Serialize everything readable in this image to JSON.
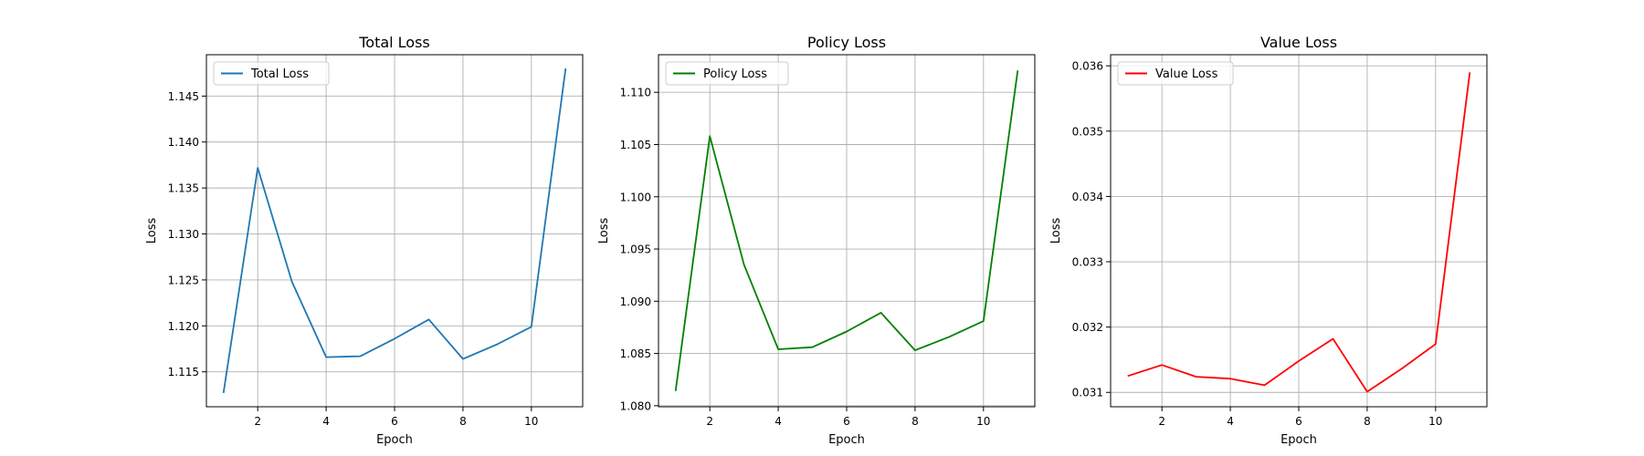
{
  "chart_data": [
    {
      "type": "line",
      "title": "Total Loss",
      "xlabel": "Epoch",
      "ylabel": "Loss",
      "xlim": [
        0.5,
        11.5
      ],
      "ylim": [
        1.1112,
        1.1495
      ],
      "xticks": [
        2,
        4,
        6,
        8,
        10
      ],
      "yticks": [
        1.115,
        1.12,
        1.125,
        1.13,
        1.135,
        1.14,
        1.145
      ],
      "ytick_labels": [
        "1.115",
        "1.120",
        "1.125",
        "1.130",
        "1.135",
        "1.140",
        "1.145"
      ],
      "grid": true,
      "legend_position": "top-left",
      "series": [
        {
          "name": "Total Loss",
          "color": "#1f77b4",
          "x": [
            1,
            2,
            3,
            4,
            5,
            6,
            7,
            8,
            9,
            10,
            11
          ],
          "values": [
            1.1127,
            1.1372,
            1.1248,
            1.1166,
            1.1167,
            1.1186,
            1.1207,
            1.1164,
            1.118,
            1.1199,
            1.148
          ]
        }
      ]
    },
    {
      "type": "line",
      "title": "Policy Loss",
      "xlabel": "Epoch",
      "ylabel": "Loss",
      "xlim": [
        0.5,
        11.5
      ],
      "ylim": [
        1.0799,
        1.1136
      ],
      "xticks": [
        2,
        4,
        6,
        8,
        10
      ],
      "yticks": [
        1.08,
        1.085,
        1.09,
        1.095,
        1.1,
        1.105,
        1.11
      ],
      "ytick_labels": [
        "1.080",
        "1.085",
        "1.090",
        "1.095",
        "1.100",
        "1.105",
        "1.110"
      ],
      "grid": true,
      "legend_position": "top-left",
      "series": [
        {
          "name": "Policy Loss",
          "color": "#008000",
          "x": [
            1,
            2,
            3,
            4,
            5,
            6,
            7,
            8,
            9,
            10,
            11
          ],
          "values": [
            1.0814,
            1.1058,
            1.0935,
            1.0854,
            1.0856,
            1.0871,
            1.0889,
            1.0853,
            1.0866,
            1.0881,
            1.1121
          ]
        }
      ]
    },
    {
      "type": "line",
      "title": "Value Loss",
      "xlabel": "Epoch",
      "ylabel": "Loss",
      "xlim": [
        0.5,
        11.5
      ],
      "ylim": [
        0.03078,
        0.03617
      ],
      "xticks": [
        2,
        4,
        6,
        8,
        10
      ],
      "yticks": [
        0.031,
        0.032,
        0.033,
        0.034,
        0.035,
        0.036
      ],
      "ytick_labels": [
        "0.031",
        "0.032",
        "0.033",
        "0.034",
        "0.035",
        "0.036"
      ],
      "grid": true,
      "legend_position": "top-left",
      "series": [
        {
          "name": "Value Loss",
          "color": "#ff0000",
          "x": [
            1,
            2,
            3,
            4,
            5,
            6,
            7,
            8,
            9,
            10,
            11
          ],
          "values": [
            0.03125,
            0.03142,
            0.03124,
            0.03121,
            0.03111,
            0.03148,
            0.03182,
            0.03101,
            0.03136,
            0.03174,
            0.0359
          ]
        }
      ]
    }
  ]
}
